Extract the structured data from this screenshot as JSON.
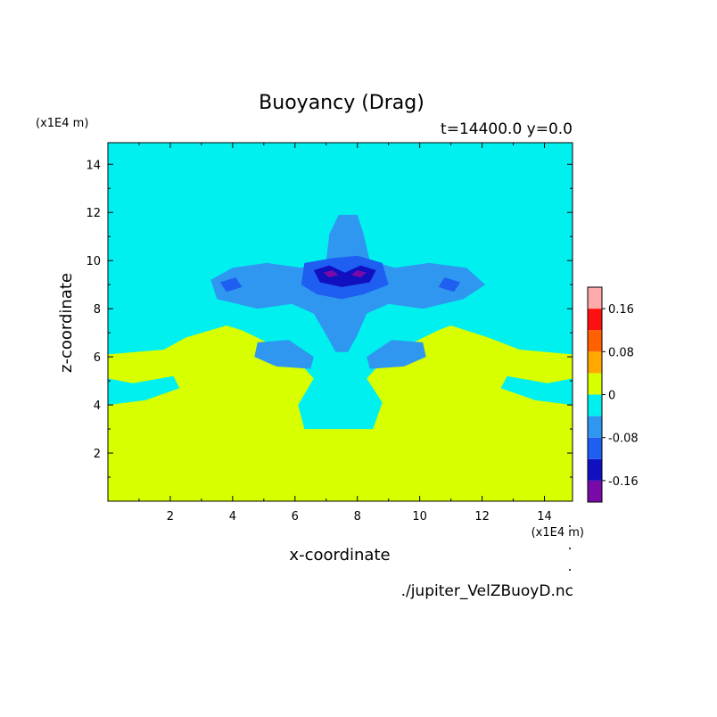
{
  "chart_data": {
    "type": "heatmap",
    "title": "Buoyancy (Drag)",
    "subtitle": "t=14400.0 y=0.0",
    "xlabel": "x-coordinate",
    "ylabel": "z-coordinate",
    "x_unit": "(x1E4 m)",
    "y_unit": "(x1E4 m)",
    "xlim": [
      0,
      14.9
    ],
    "ylim": [
      0,
      14.9
    ],
    "xticks": [
      "2",
      "4",
      "6",
      "8",
      "10",
      "12",
      "14"
    ],
    "yticks": [
      "2",
      "4",
      "6",
      "8",
      "10",
      "12",
      "14"
    ],
    "source_file": "./jupiter_VelZBuoyD.nc",
    "colorbar": {
      "levels": [
        {
          "lo": -0.2,
          "hi": -0.16,
          "color": "#7a0aa8"
        },
        {
          "lo": -0.16,
          "hi": -0.12,
          "color": "#1010c0"
        },
        {
          "lo": -0.12,
          "hi": -0.08,
          "color": "#1e5ef0"
        },
        {
          "lo": -0.08,
          "hi": -0.04,
          "color": "#2f97f0"
        },
        {
          "lo": -0.04,
          "hi": 0.0,
          "color": "#00f0f0"
        },
        {
          "lo": 0.0,
          "hi": 0.04,
          "color": "#d8ff00"
        },
        {
          "lo": 0.04,
          "hi": 0.08,
          "color": "#ffa800"
        },
        {
          "lo": 0.08,
          "hi": 0.12,
          "color": "#ff6000"
        },
        {
          "lo": 0.12,
          "hi": 0.16,
          "color": "#ff1010"
        },
        {
          "lo": 0.16,
          "hi": 0.2,
          "color": "#ffaaaa"
        }
      ],
      "labels": [
        "0.16",
        "0.08",
        "0",
        "-0.08",
        "-0.16"
      ],
      "label_values": [
        0.16,
        0.08,
        0,
        -0.08,
        -0.16
      ]
    },
    "regions": [
      {
        "level": -0.02,
        "points": [
          [
            0,
            14.9
          ],
          [
            14.9,
            14.9
          ],
          [
            14.9,
            6.1
          ],
          [
            13.2,
            6.3
          ],
          [
            12.2,
            6.8
          ],
          [
            11.0,
            7.3
          ],
          [
            10.6,
            7.1
          ],
          [
            9.0,
            6.1
          ],
          [
            8.3,
            5.1
          ],
          [
            8.8,
            4.1
          ],
          [
            8.5,
            3.0
          ],
          [
            6.3,
            3.0
          ],
          [
            6.1,
            4.0
          ],
          [
            6.6,
            5.1
          ],
          [
            5.9,
            6.1
          ],
          [
            4.3,
            7.1
          ],
          [
            3.8,
            7.3
          ],
          [
            2.5,
            6.8
          ],
          [
            1.8,
            6.3
          ],
          [
            0,
            6.1
          ]
        ]
      },
      {
        "level": -0.02,
        "points": [
          [
            0,
            5.1
          ],
          [
            0.8,
            4.9
          ],
          [
            2.1,
            5.2
          ],
          [
            2.3,
            4.7
          ],
          [
            1.2,
            4.2
          ],
          [
            0,
            4.0
          ]
        ]
      },
      {
        "level": -0.02,
        "points": [
          [
            14.9,
            5.1
          ],
          [
            14.1,
            4.9
          ],
          [
            12.8,
            5.2
          ],
          [
            12.6,
            4.7
          ],
          [
            13.7,
            4.2
          ],
          [
            14.9,
            4.0
          ]
        ]
      },
      {
        "level": -0.06,
        "points": [
          [
            3.3,
            9.2
          ],
          [
            4.0,
            9.7
          ],
          [
            5.1,
            9.9
          ],
          [
            6.2,
            9.7
          ],
          [
            7.0,
            10.0
          ],
          [
            7.1,
            11.1
          ],
          [
            7.4,
            11.9
          ],
          [
            8.0,
            11.9
          ],
          [
            8.2,
            11.1
          ],
          [
            8.4,
            10.0
          ],
          [
            9.2,
            9.7
          ],
          [
            10.3,
            9.9
          ],
          [
            11.5,
            9.7
          ],
          [
            12.1,
            9.0
          ],
          [
            11.4,
            8.4
          ],
          [
            10.1,
            8.0
          ],
          [
            9.0,
            8.2
          ],
          [
            8.3,
            7.8
          ],
          [
            8.0,
            6.9
          ],
          [
            7.7,
            6.2
          ],
          [
            7.3,
            6.2
          ],
          [
            7.0,
            6.9
          ],
          [
            6.6,
            7.8
          ],
          [
            5.9,
            8.2
          ],
          [
            4.8,
            8.0
          ],
          [
            3.5,
            8.4
          ]
        ]
      },
      {
        "level": -0.06,
        "points": [
          [
            4.8,
            6.6
          ],
          [
            5.8,
            6.7
          ],
          [
            6.6,
            6.0
          ],
          [
            6.5,
            5.5
          ],
          [
            5.4,
            5.6
          ],
          [
            4.7,
            6.0
          ]
        ]
      },
      {
        "level": -0.06,
        "points": [
          [
            10.1,
            6.6
          ],
          [
            9.1,
            6.7
          ],
          [
            8.3,
            6.0
          ],
          [
            8.4,
            5.5
          ],
          [
            9.5,
            5.6
          ],
          [
            10.2,
            6.0
          ]
        ]
      },
      {
        "level": -0.1,
        "points": [
          [
            6.3,
            9.9
          ],
          [
            7.2,
            10.1
          ],
          [
            8.0,
            10.2
          ],
          [
            8.8,
            9.9
          ],
          [
            9.0,
            9.0
          ],
          [
            8.2,
            8.6
          ],
          [
            7.5,
            8.4
          ],
          [
            6.7,
            8.6
          ],
          [
            6.2,
            9.0
          ]
        ]
      },
      {
        "level": -0.1,
        "points": [
          [
            3.6,
            9.1
          ],
          [
            4.1,
            9.3
          ],
          [
            4.3,
            8.9
          ],
          [
            3.8,
            8.7
          ]
        ]
      },
      {
        "level": -0.1,
        "points": [
          [
            11.3,
            9.1
          ],
          [
            10.8,
            9.3
          ],
          [
            10.6,
            8.9
          ],
          [
            11.1,
            8.7
          ]
        ]
      },
      {
        "level": -0.14,
        "points": [
          [
            6.6,
            9.6
          ],
          [
            7.1,
            9.8
          ],
          [
            7.6,
            9.5
          ],
          [
            8.1,
            9.8
          ],
          [
            8.6,
            9.6
          ],
          [
            8.4,
            9.1
          ],
          [
            7.5,
            8.9
          ],
          [
            6.8,
            9.1
          ]
        ]
      },
      {
        "level": -0.18,
        "points": [
          [
            6.9,
            9.5
          ],
          [
            7.2,
            9.6
          ],
          [
            7.4,
            9.4
          ],
          [
            7.1,
            9.3
          ]
        ]
      },
      {
        "level": -0.18,
        "points": [
          [
            8.3,
            9.5
          ],
          [
            8.0,
            9.6
          ],
          [
            7.8,
            9.4
          ],
          [
            8.1,
            9.3
          ]
        ]
      }
    ]
  }
}
